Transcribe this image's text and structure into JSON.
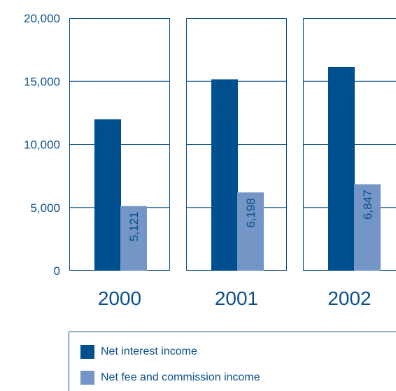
{
  "chart_data": {
    "type": "bar",
    "categories": [
      "2000",
      "2001",
      "2002"
    ],
    "series": [
      {
        "name": "Net interest income",
        "values": [
          11998,
          15156,
          16125
        ],
        "labels": [
          "11,998",
          "15,156",
          "16,125"
        ],
        "color": "#00508f"
      },
      {
        "name": "Net fee and commission income",
        "values": [
          5121,
          6198,
          6847
        ],
        "labels": [
          "5,121",
          "6,198",
          "6,847"
        ],
        "color": "#7496c6"
      }
    ],
    "ylim": [
      0,
      20000
    ],
    "yticks": [
      0,
      5000,
      10000,
      15000,
      20000
    ],
    "ytick_labels": [
      "0",
      "5,000",
      "10,000",
      "15,000",
      "20,000"
    ],
    "grid": true,
    "legend_position": "bottom"
  },
  "colors": {
    "text": "#0b4f8a",
    "frame": "#0b4f8a"
  }
}
